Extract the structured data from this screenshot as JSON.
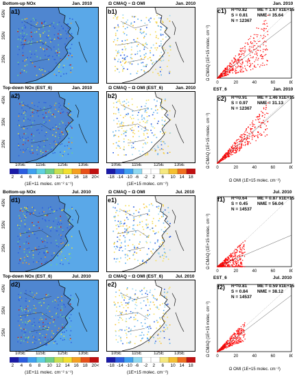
{
  "periods": [
    {
      "month": "Jan. 2010",
      "key": "jan"
    },
    {
      "month": "Jul. 2010",
      "key": "jul"
    }
  ],
  "jan": {
    "map_a1": {
      "label": "a1)",
      "title": "Bottom-up NOx",
      "month": "Jan. 2010"
    },
    "map_a2": {
      "label": "a2)",
      "title": "Top-down NOx (EST_6)",
      "month": "Jan. 2010"
    },
    "map_b1": {
      "label": "b1)",
      "title": "Ω CMAQ − Ω OMI",
      "month": "Jan. 2010"
    },
    "map_b2": {
      "label": "b2)",
      "title": "Ω CMAQ − Ω OMI (EST_6)",
      "month": "Jan. 2010"
    },
    "scatter_c1": {
      "label": "c1)",
      "r2": "R²=0.82",
      "s": "S = 0.81",
      "n": "N = 12367",
      "me": "ME = 1.67 x1E+15",
      "nme": "NME = 35.64",
      "footer_left": "EST_6",
      "footer_right": "Jan. 2010"
    },
    "scatter_c2": {
      "label": "c2)",
      "r2": "R²=0.91",
      "s": "S = 0.97",
      "n": "N = 12367",
      "me": "ME = 1.46 x1E+15",
      "nme": "NME = 31.13"
    }
  },
  "jul": {
    "map_d1": {
      "label": "d1)",
      "title": "Bottom-up NOx",
      "month": "Jul. 2010"
    },
    "map_d2": {
      "label": "d2)",
      "title": "Top-down NOx (EST_6)",
      "month": "Jul. 2010"
    },
    "map_e1": {
      "label": "e1)",
      "title": "Ω CMAQ − Ω OMI",
      "month": "Jul. 2010"
    },
    "map_e2": {
      "label": "e2)",
      "title": "Ω CMAQ − Ω OMI (EST_6)",
      "month": "Jul. 2010"
    },
    "scatter_f1": {
      "label": "f1)",
      "r2": "R²=0.64",
      "s": "S = 0.45",
      "n": "N = 14537",
      "me": "ME = 0.87 x1E+15",
      "nme": "NME = 56.04",
      "footer_left": "EST_6",
      "footer_right": "Jul. 2010"
    },
    "scatter_f2": {
      "label": "f2)",
      "r2": "R²=0.81",
      "s": "S = 0.84",
      "n": "N = 14537",
      "me": "ME = 0.59 x1E+15",
      "nme": "NME = 38.12"
    }
  },
  "map_axes": {
    "lat_labels": [
      "45N",
      "35N",
      "25N"
    ],
    "lon_labels": [
      "105E",
      "115E",
      "125E",
      "135E"
    ]
  },
  "colorbar_emis": {
    "ticks": [
      "2",
      "4",
      "6",
      "8",
      "10",
      "12",
      "14",
      "16",
      "18",
      "20<"
    ],
    "unit": "(1E+11 molec. cm⁻² s⁻¹)",
    "colors": [
      "#1a1aa8",
      "#2b5de0",
      "#3fa0f0",
      "#5fd0e0",
      "#6fd08a",
      "#c8e050",
      "#f2e030",
      "#f5a020",
      "#e85018",
      "#c01010"
    ]
  },
  "colorbar_diff_jan": {
    "ticks": [
      "-18",
      "-14",
      "-10",
      "-6",
      "-2",
      "2",
      "6",
      "10",
      "14",
      "18"
    ],
    "unit": "(1E+15 molec. cm⁻²)",
    "colors": [
      "#1a1aa8",
      "#2b5de0",
      "#3fa0f0",
      "#8fd8f0",
      "#ffffff",
      "#ffffff",
      "#f5e880",
      "#f5c030",
      "#f07020",
      "#c01010"
    ]
  },
  "colorbar_diff_jul": {
    "ticks": [
      "-18",
      "-14",
      "-10",
      "-6",
      "-2",
      "2",
      "6",
      "10",
      "14",
      "18"
    ],
    "unit": "(1E+15 molec. cm⁻²)",
    "colors": [
      "#1a1aa8",
      "#2b5de0",
      "#3fa0f0",
      "#8fd8f0",
      "#ffffff",
      "#ffffff",
      "#f5e880",
      "#f5c030",
      "#f07020",
      "#c01010"
    ]
  },
  "scatter_axes": {
    "ylabel": "Ω CMAQ (1E+15 molec. cm⁻²)",
    "xlabel": "Ω OMI (1E+15 molec. cm⁻²)",
    "ticks": [
      "0",
      "20",
      "40",
      "60",
      "80"
    ]
  },
  "chart_data": [
    {
      "type": "scatter",
      "panel": "c1)",
      "period": "Jan. 2010",
      "xlim": [
        0,
        80
      ],
      "ylim": [
        0,
        80
      ],
      "r2": 0.82,
      "slope": 0.81,
      "n": 12367,
      "me": 1.67,
      "nme": 35.64,
      "xlabel": "Ω OMI (1E+15 molec. cm⁻²)",
      "ylabel": "Ω CMAQ (1E+15 molec. cm⁻²)",
      "spread": 0.55,
      "max": 55
    },
    {
      "type": "scatter",
      "panel": "c2)",
      "period": "Jan. 2010",
      "xlim": [
        0,
        80
      ],
      "ylim": [
        0,
        80
      ],
      "r2": 0.91,
      "slope": 0.97,
      "n": 12367,
      "me": 1.46,
      "nme": 31.13,
      "xlabel": "Ω OMI (1E+15 molec. cm⁻²)",
      "ylabel": "Ω CMAQ (1E+15 molec. cm⁻²)",
      "spread": 0.35,
      "max": 55
    },
    {
      "type": "scatter",
      "panel": "f1)",
      "period": "Jul. 2010",
      "xlim": [
        0,
        80
      ],
      "ylim": [
        0,
        80
      ],
      "r2": 0.64,
      "slope": 0.45,
      "n": 14537,
      "me": 0.87,
      "nme": 56.04,
      "xlabel": "Ω OMI (1E+15 molec. cm⁻²)",
      "ylabel": "Ω CMAQ (1E+15 molec. cm⁻²)",
      "spread": 0.6,
      "max": 30
    },
    {
      "type": "scatter",
      "panel": "f2)",
      "period": "Jul. 2010",
      "xlim": [
        0,
        80
      ],
      "ylim": [
        0,
        80
      ],
      "r2": 0.81,
      "slope": 0.84,
      "n": 14537,
      "me": 0.59,
      "nme": 38.12,
      "xlabel": "Ω OMI (1E+15 molec. cm⁻²)",
      "ylabel": "Ω CMAQ (1E+15 molec. cm⁻²)",
      "spread": 0.4,
      "max": 30
    }
  ]
}
